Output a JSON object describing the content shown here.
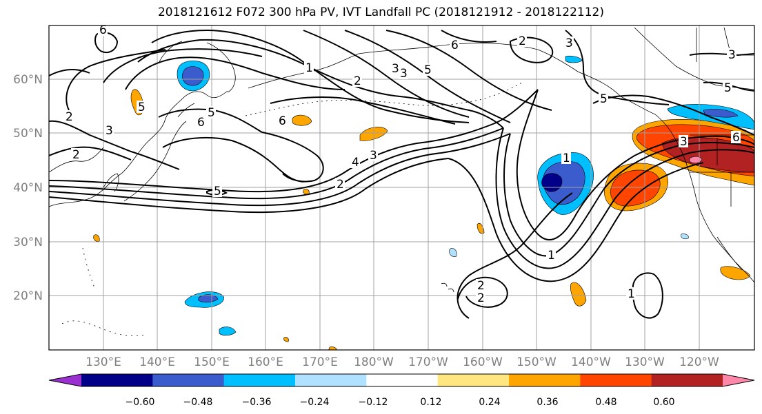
{
  "title": "2018121612 F072 300 hPa PV, IVT Landfall PC (2018121912 - 2018122112)",
  "lat_labels": [
    "60°N",
    "50°N",
    "40°N",
    "30°N",
    "20°N"
  ],
  "lon_labels": [
    "130°E",
    "140°E",
    "150°E",
    "160°E",
    "170°E",
    "180°W",
    "170°W",
    "160°W",
    "150°W",
    "140°W",
    "130°W",
    "120°W"
  ],
  "colorbar": {
    "ticks": [
      "−0.60",
      "−0.48",
      "−0.36",
      "−0.24",
      "−0.12",
      "0.12",
      "0.24",
      "0.36",
      "0.48",
      "0.60"
    ],
    "colors": [
      "#9b30d0",
      "#000088",
      "#3a5ccc",
      "#00bfff",
      "#b0e2ff",
      "#ffffff",
      "#ffe680",
      "#ffa500",
      "#ff4500",
      "#b22222",
      "#ff88aa"
    ]
  },
  "contour_labels": [
    "1",
    "2",
    "3",
    "5",
    "6",
    "2",
    "3",
    "6",
    "5",
    "3",
    "2",
    "6",
    "5",
    "2",
    "3",
    "4",
    "2",
    "3",
    "1",
    "2",
    "1",
    "3",
    "5",
    "6",
    "5",
    "3",
    "5",
    "6",
    "1",
    "2"
  ]
}
